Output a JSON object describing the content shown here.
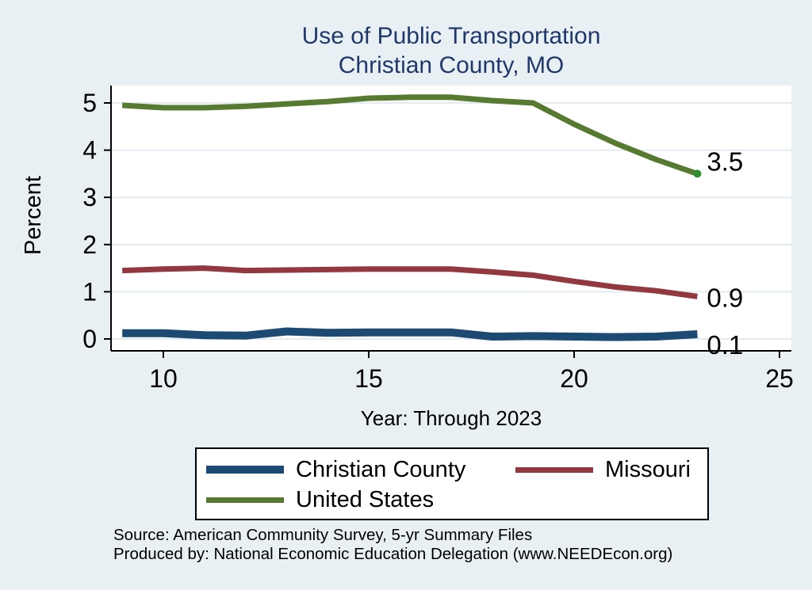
{
  "title": {
    "line1": "Use of Public Transportation",
    "line2": "Christian County, MO"
  },
  "axes": {
    "y_label": "Percent",
    "x_label": "Year: Through 2023",
    "x_ticks": [
      10,
      15,
      20,
      25
    ],
    "y_ticks": [
      0,
      1,
      2,
      3,
      4,
      5
    ]
  },
  "chart_data": {
    "type": "line",
    "title": "Use of Public Transportation — Christian County, MO",
    "xlabel": "Year: Through 2023",
    "ylabel": "Percent",
    "x": [
      9,
      10,
      11,
      12,
      13,
      14,
      15,
      16,
      17,
      18,
      19,
      20,
      21,
      22,
      23
    ],
    "xlim": [
      8.7,
      25.3
    ],
    "ylim": [
      0,
      5
    ],
    "grid": "horizontal",
    "legend_position": "bottom",
    "series": [
      {
        "name": "Christian County",
        "color": "#1d4a73",
        "width": 10,
        "values": [
          0.12,
          0.12,
          0.08,
          0.07,
          0.16,
          0.13,
          0.14,
          0.14,
          0.14,
          0.05,
          0.06,
          0.05,
          0.04,
          0.05,
          0.1
        ],
        "end_label": "0.1"
      },
      {
        "name": "Missouri",
        "color": "#93383f",
        "width": 7,
        "values": [
          1.45,
          1.48,
          1.5,
          1.45,
          1.46,
          1.47,
          1.48,
          1.48,
          1.48,
          1.42,
          1.35,
          1.22,
          1.1,
          1.02,
          0.9
        ],
        "end_label": "0.9"
      },
      {
        "name": "United States",
        "color": "#567b30",
        "width": 7,
        "values": [
          4.95,
          4.9,
          4.9,
          4.93,
          4.98,
          5.03,
          5.1,
          5.12,
          5.12,
          5.05,
          5.0,
          4.55,
          4.15,
          3.8,
          3.5
        ],
        "end_label": "3.5",
        "end_dot": true,
        "end_dot_color": "#2f8f2f"
      }
    ]
  },
  "colors": {
    "background": "#e9f0f3",
    "plot_background": "#ffffff",
    "grid": "#e2ebf2",
    "axis": "#000000",
    "title_text": "#21386b",
    "label_text": "#000000"
  },
  "source": {
    "line1": "Source: American Community Survey, 5-yr Summary Files",
    "line2": "Produced by: National Economic Education Delegation (www.NEEDEcon.org)"
  }
}
